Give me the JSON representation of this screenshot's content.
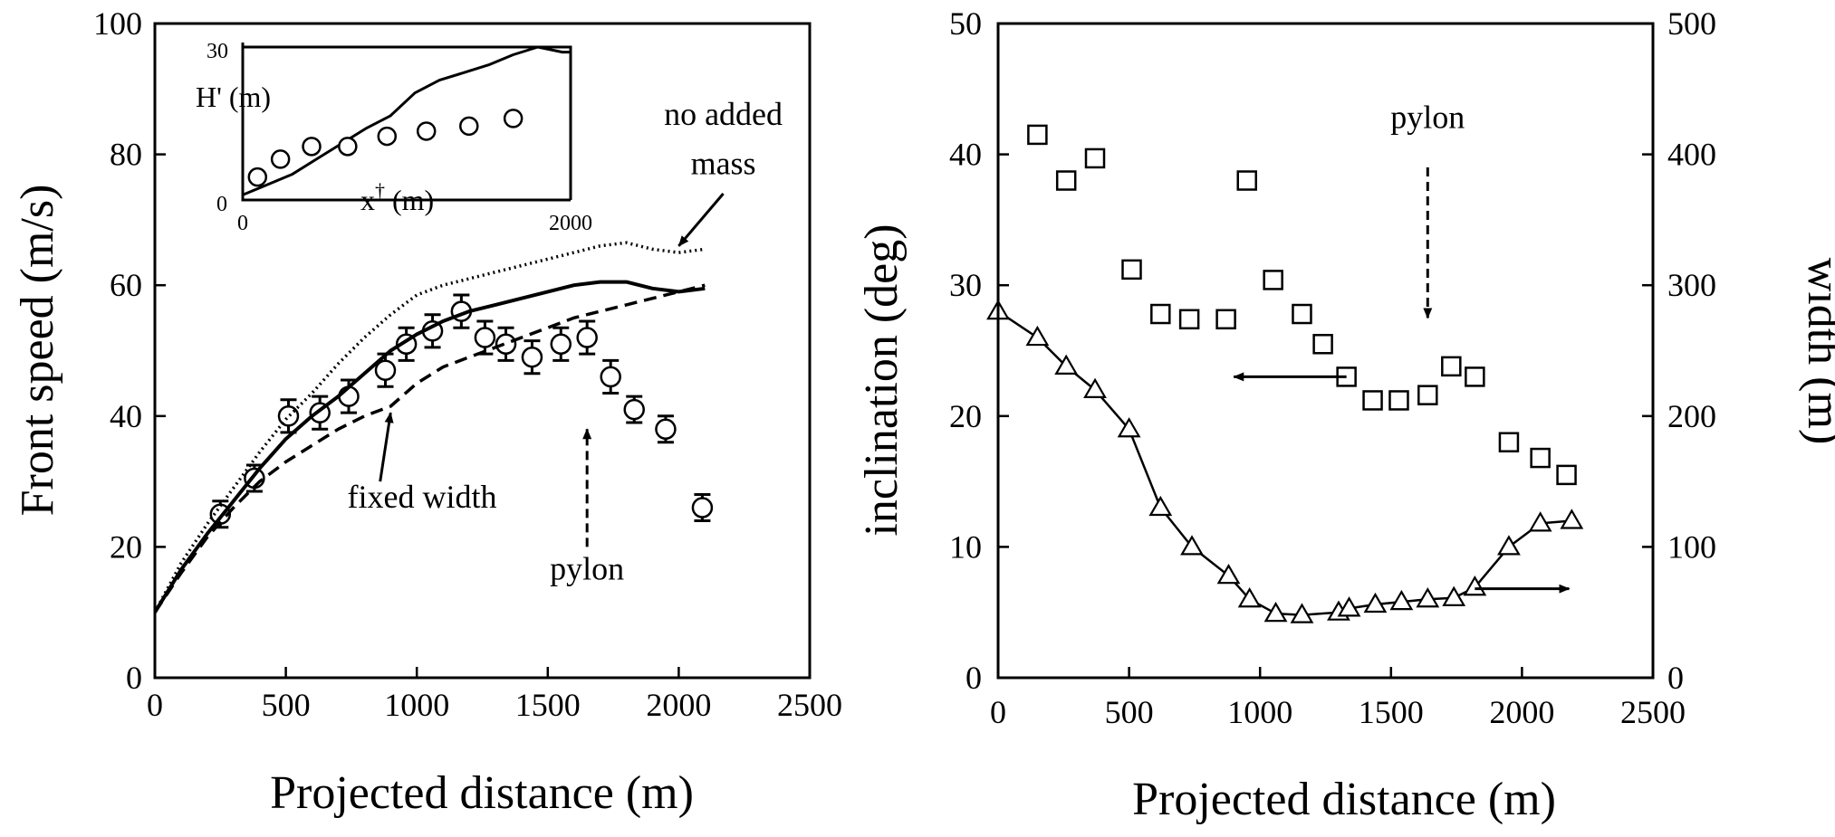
{
  "chart_data": [
    {
      "type": "line",
      "xlabel": "Projected distance (m)",
      "ylabel": "Front speed (m/s)",
      "xlim": [
        0,
        2500
      ],
      "ylim": [
        0,
        100
      ],
      "xticks": [
        0,
        500,
        1000,
        1500,
        2000,
        2500
      ],
      "yticks": [
        0,
        20,
        40,
        60,
        80,
        100
      ],
      "series": [
        {
          "style": "markers",
          "marker": "circle",
          "x": [
            250,
            380,
            510,
            630,
            740,
            880,
            960,
            1060,
            1170,
            1260,
            1340,
            1440,
            1550,
            1650,
            1740,
            1830,
            1950,
            2090
          ],
          "y": [
            25,
            30.5,
            40,
            40.5,
            43,
            47,
            51,
            53,
            56,
            52,
            51,
            49,
            51,
            52,
            46,
            41,
            38,
            26
          ],
          "err": [
            2,
            2,
            2.5,
            2.5,
            2.5,
            2.5,
            2.5,
            2.5,
            2.5,
            2.5,
            2.5,
            2.5,
            2.5,
            2.5,
            2.5,
            2,
            2,
            2
          ]
        },
        {
          "style": "solid",
          "x": [
            0,
            100,
            200,
            300,
            400,
            500,
            600,
            700,
            800,
            900,
            1000,
            1100,
            1200,
            1300,
            1400,
            1500,
            1600,
            1700,
            1800,
            1900,
            2000,
            2100
          ],
          "y": [
            10,
            16.5,
            22,
            27,
            32,
            36.5,
            40,
            43,
            46.5,
            50,
            52.5,
            54.5,
            56,
            57,
            58,
            59,
            60,
            60.5,
            60.5,
            59.5,
            59,
            59.5
          ]
        },
        {
          "style": "dotted",
          "x": [
            0,
            100,
            200,
            300,
            400,
            500,
            600,
            700,
            800,
            900,
            1000,
            1100,
            1200,
            1300,
            1400,
            1500,
            1600,
            1700,
            1800,
            1900,
            2000,
            2100
          ],
          "y": [
            10,
            17.5,
            23.5,
            29,
            34.5,
            39.5,
            43.5,
            48,
            52,
            55.5,
            58.5,
            60,
            61,
            62,
            63,
            64,
            65,
            66,
            66.5,
            65.5,
            65,
            65.5
          ]
        },
        {
          "style": "dashed",
          "x": [
            0,
            100,
            200,
            300,
            400,
            500,
            600,
            700,
            800,
            900,
            1000,
            1100,
            1200,
            1300,
            1400,
            1500,
            1600,
            1700,
            1800,
            1900,
            2000,
            2100
          ],
          "y": [
            10,
            16,
            21.5,
            26,
            30,
            33,
            35.5,
            38,
            40,
            41.5,
            45,
            47.5,
            49,
            50.5,
            52,
            53.5,
            55,
            56,
            57,
            58,
            59,
            60
          ]
        }
      ],
      "annotations": [
        {
          "text": "no added",
          "x": 2170,
          "y": 84.5,
          "anchor": "middle"
        },
        {
          "text": "mass",
          "x": 2170,
          "y": 77,
          "anchor": "middle"
        },
        {
          "text": "fixed width",
          "x": 1020,
          "y": 26,
          "anchor": "middle"
        },
        {
          "text": "pylon",
          "x": 1650,
          "y": 15,
          "anchor": "middle"
        }
      ],
      "arrows": [
        {
          "from": [
            2170,
            74
          ],
          "to": [
            2000,
            66
          ],
          "style": "solid"
        },
        {
          "from": [
            860,
            30
          ],
          "to": [
            900,
            40.5
          ],
          "style": "solid"
        },
        {
          "from": [
            1650,
            20
          ],
          "to": [
            1650,
            38
          ],
          "style": "dashed"
        }
      ],
      "inset": {
        "ylabel": "H' (m)",
        "xlabel_main": "x",
        "xlabel_sup": "†",
        "xlabel_unit": " (m)",
        "xlim": [
          0,
          2000
        ],
        "ylim": [
          0,
          30
        ],
        "xtick_labels": [
          "0",
          "2000"
        ],
        "ytick_labels": [
          "0",
          "30"
        ],
        "series": [
          {
            "style": "solid",
            "x": [
              0,
              150,
              300,
              450,
              600,
              750,
              900,
              1050,
              1200,
              1350,
              1500,
              1650,
              1800,
              1950,
              2000
            ],
            "y": [
              1,
              3,
              5,
              8,
              11,
              14,
              16.5,
              21,
              23.5,
              25,
              26.5,
              28.5,
              30,
              29,
              29
            ]
          },
          {
            "style": "markers",
            "marker": "circle",
            "x": [
              90,
              230,
              420,
              640,
              880,
              1120,
              1380,
              1650
            ],
            "y": [
              4.5,
              8,
              10.5,
              10.5,
              12.5,
              13.5,
              14.5,
              16
            ]
          }
        ]
      }
    },
    {
      "type": "scatter",
      "xlabel": "Projected distance (m)",
      "ylabel": "inclination (deg)",
      "y2label": "width (m)",
      "xlim": [
        0,
        2500
      ],
      "ylim": [
        0,
        50
      ],
      "y2lim": [
        0,
        500
      ],
      "xticks": [
        0,
        500,
        1000,
        1500,
        2000,
        2500
      ],
      "yticks": [
        0,
        10,
        20,
        30,
        40,
        50
      ],
      "y2ticks": [
        0,
        100,
        200,
        300,
        400,
        500
      ],
      "series": [
        {
          "axis": "left",
          "style": "markers",
          "marker": "square",
          "x": [
            150,
            260,
            370,
            510,
            620,
            730,
            870,
            950,
            1050,
            1160,
            1240,
            1330,
            1430,
            1530,
            1640,
            1730,
            1820,
            1950,
            2070,
            2170
          ],
          "y": [
            41.5,
            38,
            39.7,
            31.2,
            27.8,
            27.4,
            27.4,
            38,
            30.4,
            27.8,
            25.5,
            23,
            21.2,
            21.2,
            21.6,
            23.8,
            23,
            18,
            16.8,
            15.5
          ]
        },
        {
          "axis": "right",
          "style": "line-markers",
          "marker": "triangle",
          "x": [
            0,
            150,
            260,
            370,
            500,
            620,
            740,
            880,
            960,
            1060,
            1160,
            1300,
            1340,
            1440,
            1540,
            1640,
            1740,
            1820,
            1950,
            2070,
            2190
          ],
          "y": [
            280,
            260,
            238,
            220,
            190,
            130,
            100,
            78,
            60,
            49,
            48,
            50,
            53,
            56,
            58,
            60,
            61,
            69,
            100,
            118,
            120
          ]
        }
      ],
      "annotations": [
        {
          "text": "pylon",
          "x": 1640,
          "y": 42,
          "anchor": "middle"
        }
      ],
      "arrows": [
        {
          "from": [
            1330,
            23
          ],
          "to": [
            900,
            23
          ],
          "style": "solid"
        },
        {
          "from": [
            1820,
            6.8
          ],
          "to": [
            2180,
            6.8
          ],
          "style": "solid"
        },
        {
          "from": [
            1640,
            39
          ],
          "to": [
            1640,
            27.5
          ],
          "style": "dashed"
        }
      ]
    }
  ]
}
